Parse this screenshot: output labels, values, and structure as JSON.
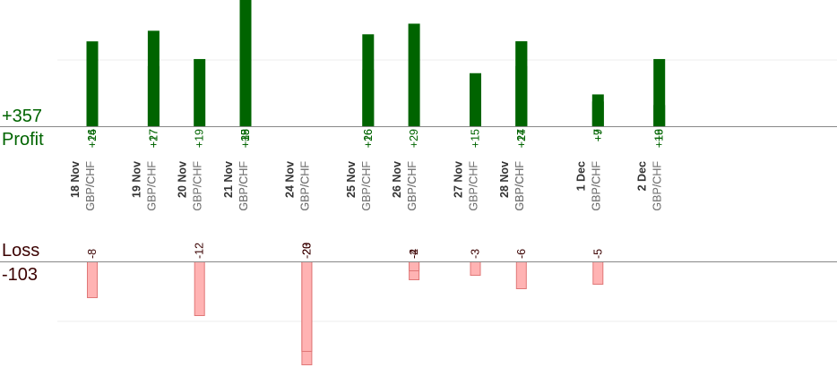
{
  "summary": {
    "profit_total": "+357",
    "profit_label": "Profit",
    "loss_label": "Loss",
    "loss_total": "-103"
  },
  "colors": {
    "profit_bar": "#006400",
    "profit_text": "#006400",
    "loss_fill": "#ffb3b3",
    "loss_stroke": "#e07777",
    "loss_text": "#3a0000",
    "date_label": "#333333",
    "pair_label": "#777777",
    "baseline": "#888888",
    "grid": "#eeeeee"
  },
  "chart_data": {
    "type": "bar",
    "series": [
      {
        "name": "Profit",
        "values": [
          16,
          24,
          17,
          27,
          19,
          15,
          9,
          38,
          26,
          16,
          29,
          15,
          17,
          24,
          24,
          7,
          9,
          6,
          19
        ]
      },
      {
        "name": "Loss",
        "values": [
          -8,
          -12,
          -20,
          -23,
          -20,
          -4,
          -2,
          -3,
          -6,
          -5
        ]
      }
    ],
    "groups": [
      {
        "date": "18 Nov",
        "trades": [
          {
            "pair": "GBP/CHF",
            "result": 16,
            "label": "+16"
          },
          {
            "pair": "GBP/CHF",
            "result": 24,
            "label": "+24"
          },
          {
            "pair": "GBP/CHF",
            "result": -8,
            "label": "-8"
          }
        ]
      },
      {
        "date": "19 Nov",
        "trades": [
          {
            "pair": "GBP/CHF",
            "result": 17,
            "label": "+17"
          },
          {
            "pair": "GBP/CHF",
            "result": 27,
            "label": "+27"
          }
        ]
      },
      {
        "date": "20 Nov",
        "trades": [
          {
            "pair": "GBP/CHF",
            "result": -12,
            "label": "-12"
          },
          {
            "pair": "GBP/CHF",
            "result": 19,
            "label": "+19"
          }
        ]
      },
      {
        "date": "21 Nov",
        "trades": [
          {
            "pair": "GBP/CHF",
            "result": 15,
            "label": "+15"
          },
          {
            "pair": "GBP/CHF",
            "result": 9,
            "label": "+9"
          },
          {
            "pair": "GBP/CHF",
            "result": 38,
            "label": "+38"
          }
        ]
      },
      {
        "date": "24 Nov",
        "trades": [
          {
            "pair": "GBP/CHF",
            "result": -20,
            "label": "-20"
          },
          {
            "pair": "GBP/CHF",
            "result": -23,
            "label": "-23"
          },
          {
            "pair": "GBP/CHF",
            "result": -20,
            "label": "-20"
          }
        ]
      },
      {
        "date": "25 Nov",
        "trades": [
          {
            "pair": "GBP/CHF",
            "result": 26,
            "label": "+26"
          },
          {
            "pair": "GBP/CHF",
            "result": 16,
            "label": "+16"
          }
        ]
      },
      {
        "date": "26 Nov",
        "trades": [
          {
            "pair": "GBP/CHF",
            "result": 29,
            "label": "+29"
          },
          {
            "pair": "GBP/CHF",
            "result": -4,
            "label": "-4"
          },
          {
            "pair": "GBP/CHF",
            "result": -2,
            "label": "-2"
          }
        ]
      },
      {
        "date": "27 Nov",
        "trades": [
          {
            "pair": "GBP/CHF",
            "result": -3,
            "label": "-3"
          },
          {
            "pair": "GBP/CHF",
            "result": 15,
            "label": "+15"
          }
        ]
      },
      {
        "date": "28 Nov",
        "trades": [
          {
            "pair": "GBP/CHF",
            "result": 17,
            "label": "+17"
          },
          {
            "pair": "GBP/CHF",
            "result": 24,
            "label": "+24"
          },
          {
            "pair": "GBP/CHF",
            "result": 24,
            "label": "+24"
          },
          {
            "pair": "GBP/CHF",
            "result": -6,
            "label": "-6"
          }
        ]
      },
      {
        "date": "1 Dec",
        "trades": [
          {
            "pair": "GBP/CHF",
            "result": 7,
            "label": "+7"
          },
          {
            "pair": "GBP/CHF",
            "result": 9,
            "label": "+9"
          },
          {
            "pair": "GBP/CHF",
            "result": -5,
            "label": "-5"
          }
        ]
      },
      {
        "date": "2 Dec",
        "trades": [
          {
            "pair": "GBP/CHF",
            "result": 6,
            "label": "+6"
          },
          {
            "pair": "GBP/CHF",
            "result": 19,
            "label": "+19"
          }
        ]
      }
    ],
    "profit_axis": {
      "min": 0,
      "max": 19
    },
    "loss_axis": {
      "min": 0,
      "max": 23
    },
    "grid": true
  }
}
